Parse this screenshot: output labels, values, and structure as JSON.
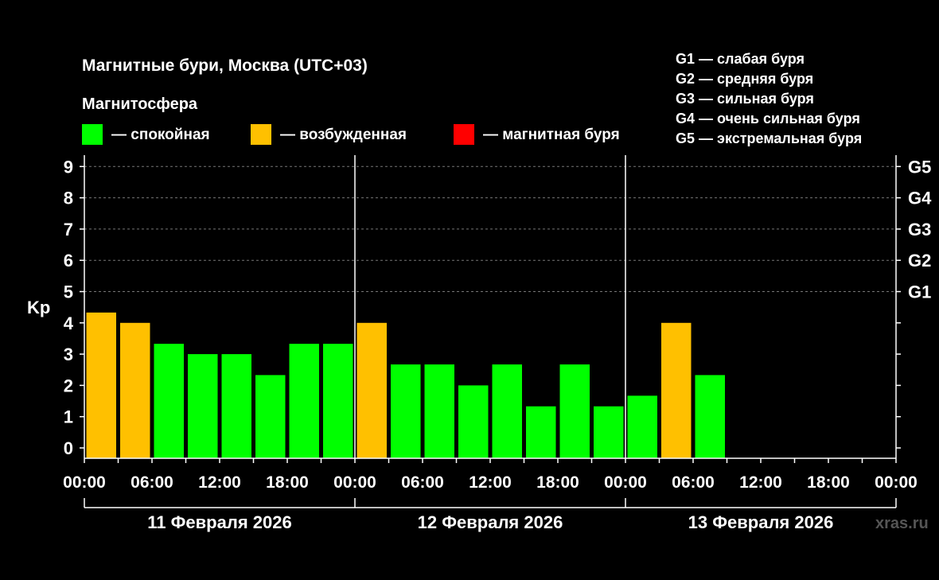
{
  "chart_data": {
    "type": "bar",
    "title": "Магнитные бури, Москва (UTC+03)",
    "legend_title": "Магнитосфера",
    "legend": [
      {
        "label": "— спокойная",
        "color": "#00ff00"
      },
      {
        "label": "— возбужденная",
        "color": "#ffc000"
      },
      {
        "label": "— магнитная буря",
        "color": "#ff0000"
      }
    ],
    "storm_levels": [
      "G1 — слабая буря",
      "G2 — средняя буря",
      "G3 — сильная буря",
      "G4 — очень сильная буря",
      "G5 — экстремальная буря"
    ],
    "ylabel": "Kp",
    "ylim": [
      0,
      9
    ],
    "yticks": [
      "0",
      "1",
      "2",
      "3",
      "4",
      "5",
      "6",
      "7",
      "8",
      "9"
    ],
    "right_ticks": [
      {
        "value": 5,
        "label": "G1"
      },
      {
        "value": 6,
        "label": "G2"
      },
      {
        "value": 7,
        "label": "G3"
      },
      {
        "value": 8,
        "label": "G4"
      },
      {
        "value": 9,
        "label": "G5"
      }
    ],
    "grid": "dashed horizontal lines at 5, 6, 7, 8, 9",
    "xticks": [
      "00:00",
      "06:00",
      "12:00",
      "18:00",
      "00:00",
      "06:00",
      "12:00",
      "18:00",
      "00:00",
      "06:00",
      "12:00",
      "18:00",
      "00:00"
    ],
    "days": [
      "11 Февраля 2026",
      "12 Февраля 2026",
      "13 Февраля 2026"
    ],
    "interval_hours": 3,
    "values": [
      4.33,
      4.0,
      3.33,
      3.0,
      3.0,
      2.33,
      3.33,
      3.33,
      4.0,
      2.67,
      2.67,
      2.0,
      2.67,
      1.33,
      2.67,
      1.33,
      1.67,
      4.0,
      2.33
    ],
    "colors": [
      "#ffc000",
      "#ffc000",
      "#00ff00",
      "#00ff00",
      "#00ff00",
      "#00ff00",
      "#00ff00",
      "#00ff00",
      "#ffc000",
      "#00ff00",
      "#00ff00",
      "#00ff00",
      "#00ff00",
      "#00ff00",
      "#00ff00",
      "#00ff00",
      "#00ff00",
      "#ffc000",
      "#00ff00"
    ]
  },
  "watermark": "xras.ru"
}
